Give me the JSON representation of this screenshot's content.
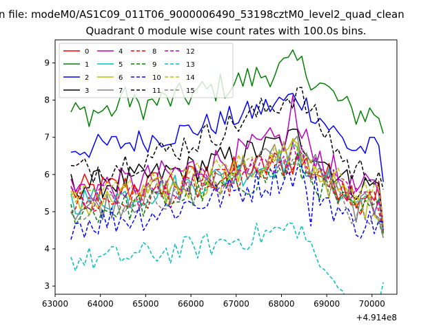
{
  "figure": {
    "suptitle": "n file: modeM0/AS1C09_011T06_9000006490_53198cztM0_level2_quad_clean",
    "offset_label": "+4.914e8"
  },
  "chart_data": {
    "type": "line",
    "title": "Quadrant 0 module wise count rates with 100.0s bins.",
    "xlabel": "",
    "ylabel": "",
    "xlim": [
      63000,
      70550
    ],
    "ylim": [
      2.78,
      9.62
    ],
    "xticks": [
      63000,
      64000,
      65000,
      66000,
      67000,
      68000,
      69000,
      70000
    ],
    "xtick_labels": [
      "63000",
      "64000",
      "65000",
      "66000",
      "67000",
      "68000",
      "69000",
      "70000"
    ],
    "yticks": [
      3,
      4,
      5,
      6,
      7,
      8,
      9
    ],
    "ytick_labels": [
      "3",
      "4",
      "5",
      "6",
      "7",
      "8",
      "9"
    ],
    "grid": false,
    "legend": {
      "placement": "upper-left",
      "columns": 5
    },
    "x_start": 63350,
    "x_step": 100,
    "n_points": 70,
    "series": [
      {
        "name": "0",
        "color": "#ff0000",
        "dash": "solid",
        "base": 5.55,
        "amp": 0.85,
        "noise": 0.45,
        "end": 4.6
      },
      {
        "name": "1",
        "color": "#008000",
        "dash": "solid",
        "base": 7.65,
        "amp": 1.35,
        "noise": 0.4,
        "end": 7.1,
        "spike_at": 12,
        "spike": 0.8
      },
      {
        "name": "2",
        "color": "#0000ff",
        "dash": "solid",
        "base": 6.7,
        "amp": 1.4,
        "noise": 0.35,
        "end": 5.8
      },
      {
        "name": "3",
        "color": "#000000",
        "dash": "solid",
        "base": 5.7,
        "amp": 1.3,
        "noise": 0.4,
        "end": 4.4
      },
      {
        "name": "4",
        "color": "#bf00bf",
        "dash": "solid",
        "base": 5.6,
        "amp": 1.5,
        "noise": 0.45,
        "end": 4.5,
        "spike_at": 49,
        "spike": 1.2
      },
      {
        "name": "5",
        "color": "#00bfbf",
        "dash": "solid",
        "base": 5.3,
        "amp": 1.2,
        "noise": 0.4,
        "end": 4.4
      },
      {
        "name": "6",
        "color": "#bfbf00",
        "dash": "solid",
        "base": 5.2,
        "amp": 1.4,
        "noise": 0.45,
        "end": 4.4
      },
      {
        "name": "7",
        "color": "#808080",
        "dash": "solid",
        "base": 5.1,
        "amp": 1.7,
        "noise": 0.4,
        "end": 4.3
      },
      {
        "name": "8",
        "color": "#ff0000",
        "dash": "dashed",
        "base": 5.2,
        "amp": 1.1,
        "noise": 0.4,
        "end": 4.5
      },
      {
        "name": "9",
        "color": "#008000",
        "dash": "dashed",
        "base": 5.0,
        "amp": 1.2,
        "noise": 0.4,
        "end": 4.4
      },
      {
        "name": "10",
        "color": "#0000ff",
        "dash": "dashed",
        "base": 4.7,
        "amp": 1.4,
        "noise": 0.45,
        "end": 4.7,
        "spike_at": 53,
        "spike": -1.3
      },
      {
        "name": "11",
        "color": "#000000",
        "dash": "dashed",
        "base": 6.1,
        "amp": 2.1,
        "noise": 0.4,
        "end": 5.6
      },
      {
        "name": "12",
        "color": "#bf00bf",
        "dash": "dashed",
        "base": 5.3,
        "amp": 1.3,
        "noise": 0.4,
        "end": 4.5
      },
      {
        "name": "13",
        "color": "#00bfbf",
        "dash": "dashed",
        "base": 3.7,
        "amp": 0.9,
        "noise": 0.35,
        "end": 3.1,
        "dip_after_peak": 1.1
      },
      {
        "name": "14",
        "color": "#bfbf00",
        "dash": "dashed",
        "base": 5.5,
        "amp": 1.2,
        "noise": 0.4,
        "end": 4.6
      },
      {
        "name": "15",
        "color": "#808080",
        "dash": "dashed",
        "base": 5.0,
        "amp": 1.5,
        "noise": 0.4,
        "end": 4.3
      }
    ]
  }
}
